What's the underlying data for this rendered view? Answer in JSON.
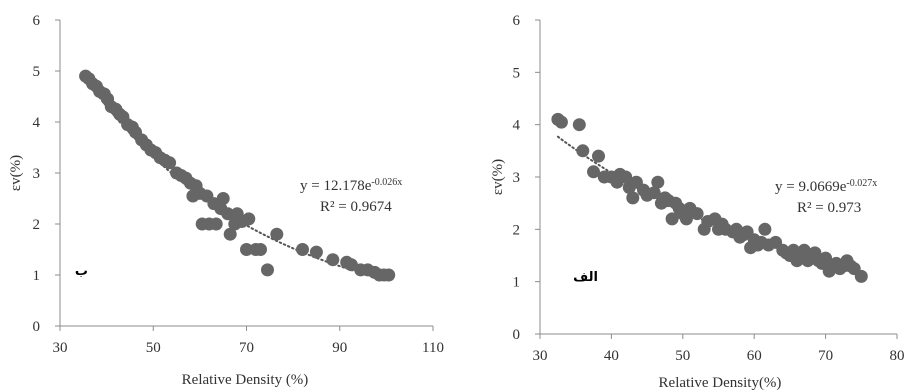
{
  "chart_data": [
    {
      "type": "scatter",
      "tag": "ب",
      "xlabel": "Relative Density (%)",
      "ylabel": "εv(%)",
      "xlim": [
        30,
        110
      ],
      "ylim": [
        0,
        6
      ],
      "xticks": [
        30,
        50,
        70,
        90,
        110
      ],
      "yticks": [
        0,
        1,
        2,
        3,
        4,
        5,
        6
      ],
      "trendline": {
        "type": "exponential",
        "a": 12.178,
        "b": -0.026,
        "style": "dotted"
      },
      "equation": {
        "prefix": "y = 12.178e",
        "exponent": "-0.026x"
      },
      "r2": "R² = 0.9674",
      "color": "#666666",
      "points": [
        [
          35.5,
          4.9
        ],
        [
          36.2,
          4.85
        ],
        [
          37.0,
          4.75
        ],
        [
          37.8,
          4.7
        ],
        [
          38.5,
          4.6
        ],
        [
          39.5,
          4.55
        ],
        [
          40.2,
          4.45
        ],
        [
          41.0,
          4.3
        ],
        [
          42.0,
          4.25
        ],
        [
          42.8,
          4.15
        ],
        [
          43.5,
          4.1
        ],
        [
          44.5,
          3.95
        ],
        [
          45.5,
          3.9
        ],
        [
          46.2,
          3.8
        ],
        [
          47.5,
          3.65
        ],
        [
          48.5,
          3.55
        ],
        [
          49.5,
          3.45
        ],
        [
          50.5,
          3.4
        ],
        [
          51.5,
          3.3
        ],
        [
          52.5,
          3.25
        ],
        [
          53.5,
          3.2
        ],
        [
          55.0,
          3.0
        ],
        [
          56.0,
          2.95
        ],
        [
          57.0,
          2.9
        ],
        [
          58.0,
          2.8
        ],
        [
          58.5,
          2.55
        ],
        [
          59.2,
          2.75
        ],
        [
          60.0,
          2.6
        ],
        [
          60.5,
          2.0
        ],
        [
          61.5,
          2.55
        ],
        [
          62.0,
          2.0
        ],
        [
          63.0,
          2.4
        ],
        [
          63.5,
          2.0
        ],
        [
          64.5,
          2.3
        ],
        [
          65.0,
          2.5
        ],
        [
          66.0,
          2.2
        ],
        [
          66.5,
          1.8
        ],
        [
          67.5,
          2.0
        ],
        [
          68.0,
          2.2
        ],
        [
          69.0,
          2.05
        ],
        [
          70.0,
          1.5
        ],
        [
          70.5,
          2.1
        ],
        [
          72.0,
          1.5
        ],
        [
          73.0,
          1.5
        ],
        [
          74.5,
          1.1
        ],
        [
          76.5,
          1.8
        ],
        [
          82.0,
          1.5
        ],
        [
          85.0,
          1.45
        ],
        [
          88.5,
          1.3
        ],
        [
          91.5,
          1.25
        ],
        [
          92.5,
          1.2
        ],
        [
          94.5,
          1.1
        ],
        [
          96.0,
          1.1
        ],
        [
          97.5,
          1.05
        ],
        [
          98.5,
          1.0
        ],
        [
          99.5,
          1.0
        ],
        [
          100.5,
          1.0
        ]
      ]
    },
    {
      "type": "scatter",
      "tag": "الف",
      "xlabel": "Relative Density(%)",
      "ylabel": "εv(%)",
      "xlim": [
        30,
        80
      ],
      "ylim": [
        0,
        6
      ],
      "xticks": [
        30,
        40,
        50,
        60,
        70,
        80
      ],
      "yticks": [
        0,
        1,
        2,
        3,
        4,
        5,
        6
      ],
      "trendline": {
        "type": "exponential",
        "a": 9.0669,
        "b": -0.027,
        "style": "dotted"
      },
      "equation": {
        "prefix": "y = 9.0669e",
        "exponent": "-0.027x"
      },
      "r2": "R² = 0.973",
      "color": "#666666",
      "points": [
        [
          32.5,
          4.1
        ],
        [
          33.0,
          4.05
        ],
        [
          35.5,
          4.0
        ],
        [
          36.0,
          3.5
        ],
        [
          37.5,
          3.1
        ],
        [
          38.2,
          3.4
        ],
        [
          39.0,
          3.0
        ],
        [
          40.0,
          3.0
        ],
        [
          40.8,
          2.9
        ],
        [
          41.2,
          3.05
        ],
        [
          42.0,
          3.0
        ],
        [
          42.5,
          2.8
        ],
        [
          43.0,
          2.6
        ],
        [
          43.5,
          2.9
        ],
        [
          44.5,
          2.75
        ],
        [
          45.0,
          2.65
        ],
        [
          46.0,
          2.7
        ],
        [
          46.5,
          2.9
        ],
        [
          47.0,
          2.5
        ],
        [
          47.5,
          2.6
        ],
        [
          48.0,
          2.55
        ],
        [
          48.5,
          2.2
        ],
        [
          49.0,
          2.5
        ],
        [
          49.5,
          2.4
        ],
        [
          50.0,
          2.3
        ],
        [
          50.5,
          2.2
        ],
        [
          51.0,
          2.4
        ],
        [
          52.0,
          2.3
        ],
        [
          53.0,
          2.0
        ],
        [
          53.5,
          2.15
        ],
        [
          54.5,
          2.2
        ],
        [
          55.0,
          2.0
        ],
        [
          55.5,
          2.1
        ],
        [
          56.0,
          2.0
        ],
        [
          57.0,
          1.95
        ],
        [
          57.5,
          2.0
        ],
        [
          58.0,
          1.85
        ],
        [
          58.5,
          1.9
        ],
        [
          59.0,
          1.95
        ],
        [
          59.5,
          1.65
        ],
        [
          60.0,
          1.8
        ],
        [
          60.5,
          1.7
        ],
        [
          61.0,
          1.75
        ],
        [
          61.5,
          2.0
        ],
        [
          62.0,
          1.7
        ],
        [
          63.0,
          1.75
        ],
        [
          64.0,
          1.6
        ],
        [
          64.5,
          1.55
        ],
        [
          65.0,
          1.5
        ],
        [
          65.5,
          1.6
        ],
        [
          66.0,
          1.4
        ],
        [
          66.5,
          1.55
        ],
        [
          67.0,
          1.6
        ],
        [
          67.5,
          1.4
        ],
        [
          68.0,
          1.5
        ],
        [
          68.5,
          1.55
        ],
        [
          69.0,
          1.4
        ],
        [
          69.5,
          1.35
        ],
        [
          70.0,
          1.45
        ],
        [
          70.5,
          1.2
        ],
        [
          71.0,
          1.3
        ],
        [
          71.5,
          1.35
        ],
        [
          72.0,
          1.25
        ],
        [
          72.5,
          1.3
        ],
        [
          73.0,
          1.4
        ],
        [
          73.5,
          1.3
        ],
        [
          74.0,
          1.25
        ],
        [
          75.0,
          1.1
        ]
      ]
    }
  ]
}
